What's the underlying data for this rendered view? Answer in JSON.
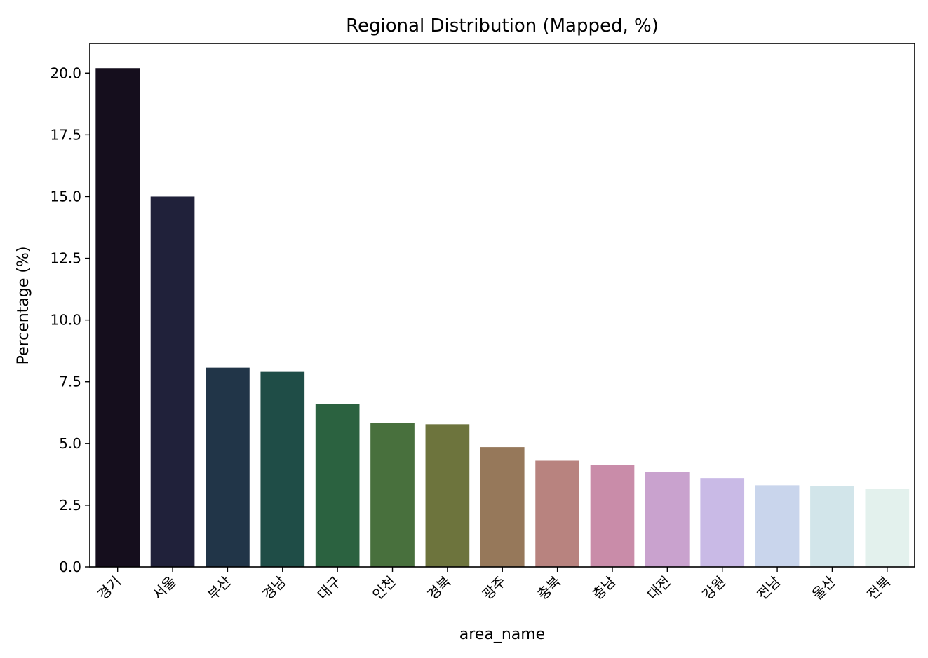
{
  "chart_data": {
    "type": "bar",
    "title": "Regional Distribution (Mapped, %)",
    "xlabel": "area_name",
    "ylabel": "Percentage (%)",
    "ylim": [
      0,
      21.2
    ],
    "yticks": [
      "0.0",
      "2.5",
      "5.0",
      "7.5",
      "10.0",
      "12.5",
      "15.0",
      "17.5",
      "20.0"
    ],
    "ytick_values": [
      0,
      2.5,
      5,
      7.5,
      10,
      12.5,
      15,
      17.5,
      20
    ],
    "grid": false,
    "legend": "none",
    "categories": [
      "경기",
      "서울",
      "부산",
      "경남",
      "대구",
      "인천",
      "경북",
      "광주",
      "충북",
      "충남",
      "대전",
      "강원",
      "전남",
      "울산",
      "전북"
    ],
    "values": [
      20.2,
      15.0,
      8.07,
      7.9,
      6.6,
      5.82,
      5.78,
      4.85,
      4.3,
      4.13,
      3.85,
      3.6,
      3.31,
      3.28,
      3.15
    ],
    "colors": [
      "#150e1d",
      "#20213a",
      "#213548",
      "#1f4d47",
      "#2b6240",
      "#48703d",
      "#6d743d",
      "#96785a",
      "#b8837f",
      "#c98ca9",
      "#c9a2ce",
      "#c9bae6",
      "#c9d5ec",
      "#d2e5ea",
      "#e3f1ed"
    ]
  }
}
